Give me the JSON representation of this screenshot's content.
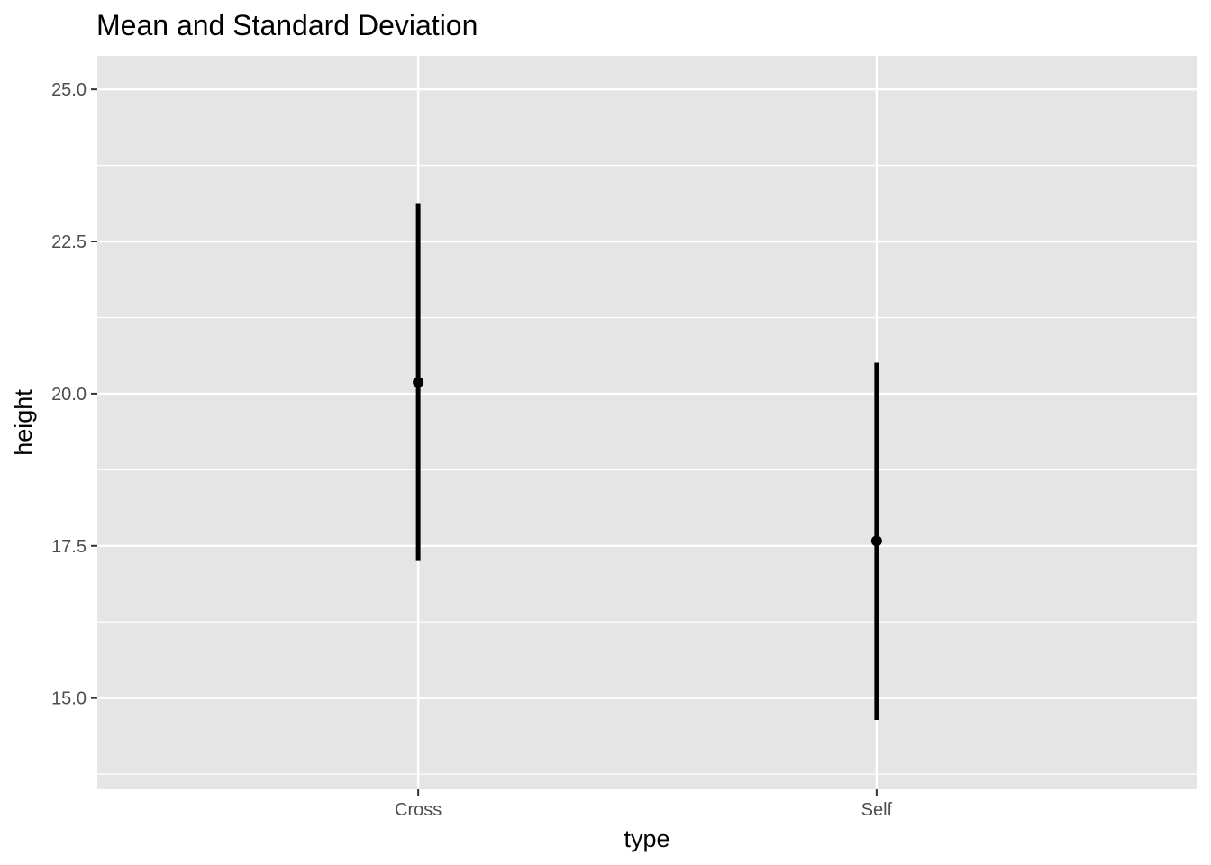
{
  "chart_data": {
    "type": "errorbar",
    "title": "Mean and Standard Deviation",
    "xlabel": "type",
    "ylabel": "height",
    "categories": [
      "Cross",
      "Self"
    ],
    "points": [
      {
        "category": "Cross",
        "mean": 20.19,
        "ymin": 17.25,
        "ymax": 23.13
      },
      {
        "category": "Self",
        "mean": 17.58,
        "ymin": 14.64,
        "ymax": 20.51
      }
    ],
    "yticks": [
      15.0,
      17.5,
      20.0,
      22.5,
      25.0
    ],
    "ytick_labels": [
      "15.0",
      "17.5",
      "20.0",
      "22.5",
      "25.0"
    ],
    "ylim": [
      13.5,
      25.55
    ],
    "grid": true,
    "colors": {
      "panel_background": "#e5e5e5",
      "grid_line": "#ffffff",
      "mark": "#000000",
      "tick_text": "#4d4d4d",
      "tick_mark": "#333333"
    }
  }
}
